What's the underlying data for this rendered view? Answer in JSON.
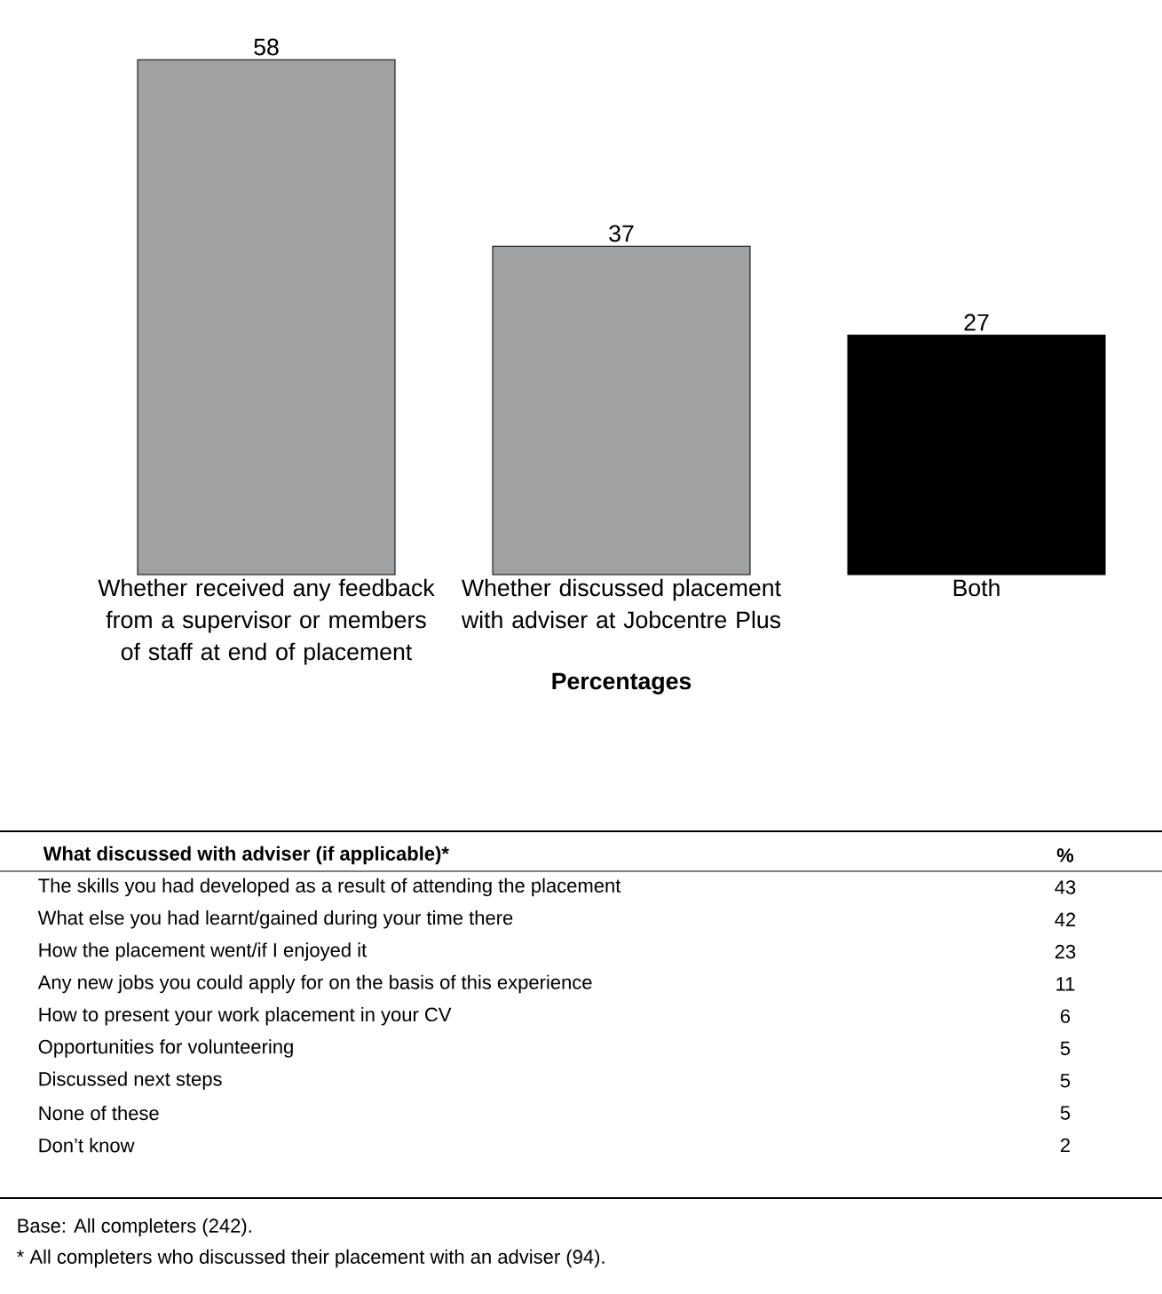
{
  "chart_data": [
    {
      "type": "bar",
      "categories": [
        "Whether received any feedback from a supervisor or members of staff at end of placement",
        "Whether discussed placement with adviser at Jobcentre Plus",
        "Both"
      ],
      "values": [
        58,
        37,
        27
      ],
      "colors": [
        "#a0a1a3",
        "#a0a1a3",
        "#000000"
      ],
      "data_labels": true,
      "xlabel": "Percentages"
    },
    {
      "type": "other",
      "title": "What discussed with adviser (if applicable)*",
      "ylabel": "%",
      "categories": [
        "The skills you had developed as a result of attending the placement",
        "What else you had learnt/gained during your time there",
        "How the placement went/if I enjoyed it",
        "Any new jobs you could apply for on the basis of this experience",
        "How to present your work placement in your CV",
        "Opportunities for volunteering",
        "Discussed next steps",
        "None of these",
        "Don’t know"
      ],
      "values": [
        43,
        42,
        23,
        11,
        6,
        5,
        5,
        5,
        2
      ],
      "data_labels": true,
      "annotations": [
        "Base: All completers (242).",
        "* All completers who discussed their placement with an adviser (94)."
      ]
    }
  ]
}
